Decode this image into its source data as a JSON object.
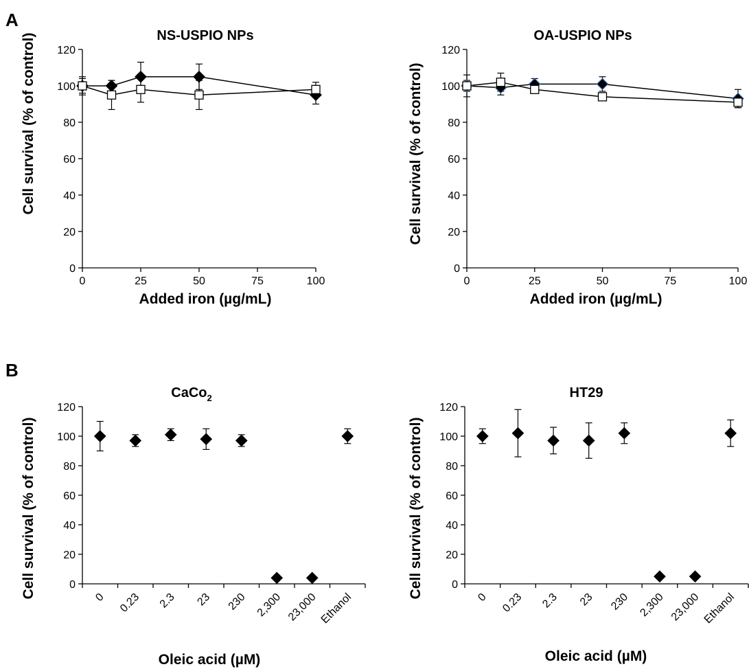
{
  "panel_labels": [
    "A",
    "B"
  ],
  "chart_data": [
    {
      "type": "line",
      "title": "NS-USPIO NPs",
      "xlabel": "Added iron (µg/mL)",
      "ylabel": "Cell survival (% of control)",
      "x_ticks": [
        "0",
        "25",
        "50",
        "75",
        "100"
      ],
      "y_ticks": [
        "0",
        "20",
        "40",
        "60",
        "80",
        "100",
        "120"
      ],
      "xlim": [
        0,
        100
      ],
      "ylim": [
        0,
        120
      ],
      "series": [
        {
          "marker": "diamond",
          "fill": "#000000",
          "x": [
            0,
            12.5,
            25,
            50,
            100
          ],
          "y": [
            100,
            100,
            105,
            105,
            95
          ],
          "err": [
            5,
            3,
            8,
            7,
            5
          ]
        },
        {
          "marker": "square",
          "fill": "#ffffff",
          "x": [
            0,
            12.5,
            25,
            50,
            100
          ],
          "y": [
            100,
            95,
            98,
            95,
            98
          ],
          "err": [
            4,
            8,
            7,
            8,
            4
          ]
        }
      ]
    },
    {
      "type": "line",
      "title": "OA-USPIO NPs",
      "xlabel": "Added iron (µg/mL)",
      "ylabel": "Cell survival (% of control)",
      "x_ticks": [
        "0",
        "25",
        "50",
        "75",
        "100"
      ],
      "y_ticks": [
        "0",
        "20",
        "40",
        "60",
        "80",
        "100",
        "120"
      ],
      "xlim": [
        0,
        100
      ],
      "ylim": [
        0,
        120
      ],
      "series": [
        {
          "marker": "diamond",
          "fill": "#000000",
          "stroke": "#3a6fb5",
          "x": [
            0,
            12.5,
            25,
            50,
            100
          ],
          "y": [
            100,
            99,
            101,
            101,
            93
          ],
          "err": [
            3,
            4,
            3,
            4,
            5
          ]
        },
        {
          "marker": "square",
          "fill": "#ffffff",
          "x": [
            0,
            12.5,
            25,
            50,
            100
          ],
          "y": [
            100,
            102,
            98,
            94,
            91
          ],
          "err": [
            6,
            5,
            2,
            2,
            3
          ]
        }
      ]
    },
    {
      "type": "scatter",
      "title_main": "CaCo",
      "title_sub": "2",
      "xlabel": "Oleic acid (µM)",
      "ylabel": "Cell survival (% of control)",
      "categories": [
        "0",
        "0.23",
        "2.3",
        "23",
        "230",
        "2,300",
        "23,000",
        "Ethanol"
      ],
      "y_ticks": [
        "0",
        "20",
        "40",
        "60",
        "80",
        "100",
        "120"
      ],
      "ylim": [
        0,
        120
      ],
      "values": [
        100,
        97,
        101,
        98,
        97,
        4,
        4,
        100
      ],
      "err": [
        10,
        4,
        4,
        7,
        4,
        0,
        0,
        5
      ]
    },
    {
      "type": "scatter",
      "title_main": "HT29",
      "title_sub": "",
      "xlabel": "Oleic acid (µM)",
      "ylabel": "Cell survival (% of control)",
      "categories": [
        "0",
        "0.23",
        "2.3",
        "23",
        "230",
        "2,300",
        "23,000",
        "Ethanol"
      ],
      "y_ticks": [
        "0",
        "20",
        "40",
        "60",
        "80",
        "100",
        "120"
      ],
      "ylim": [
        0,
        120
      ],
      "values": [
        100,
        102,
        97,
        97,
        102,
        5,
        5,
        102
      ],
      "err": [
        5,
        16,
        9,
        12,
        7,
        0,
        0,
        9
      ]
    }
  ]
}
